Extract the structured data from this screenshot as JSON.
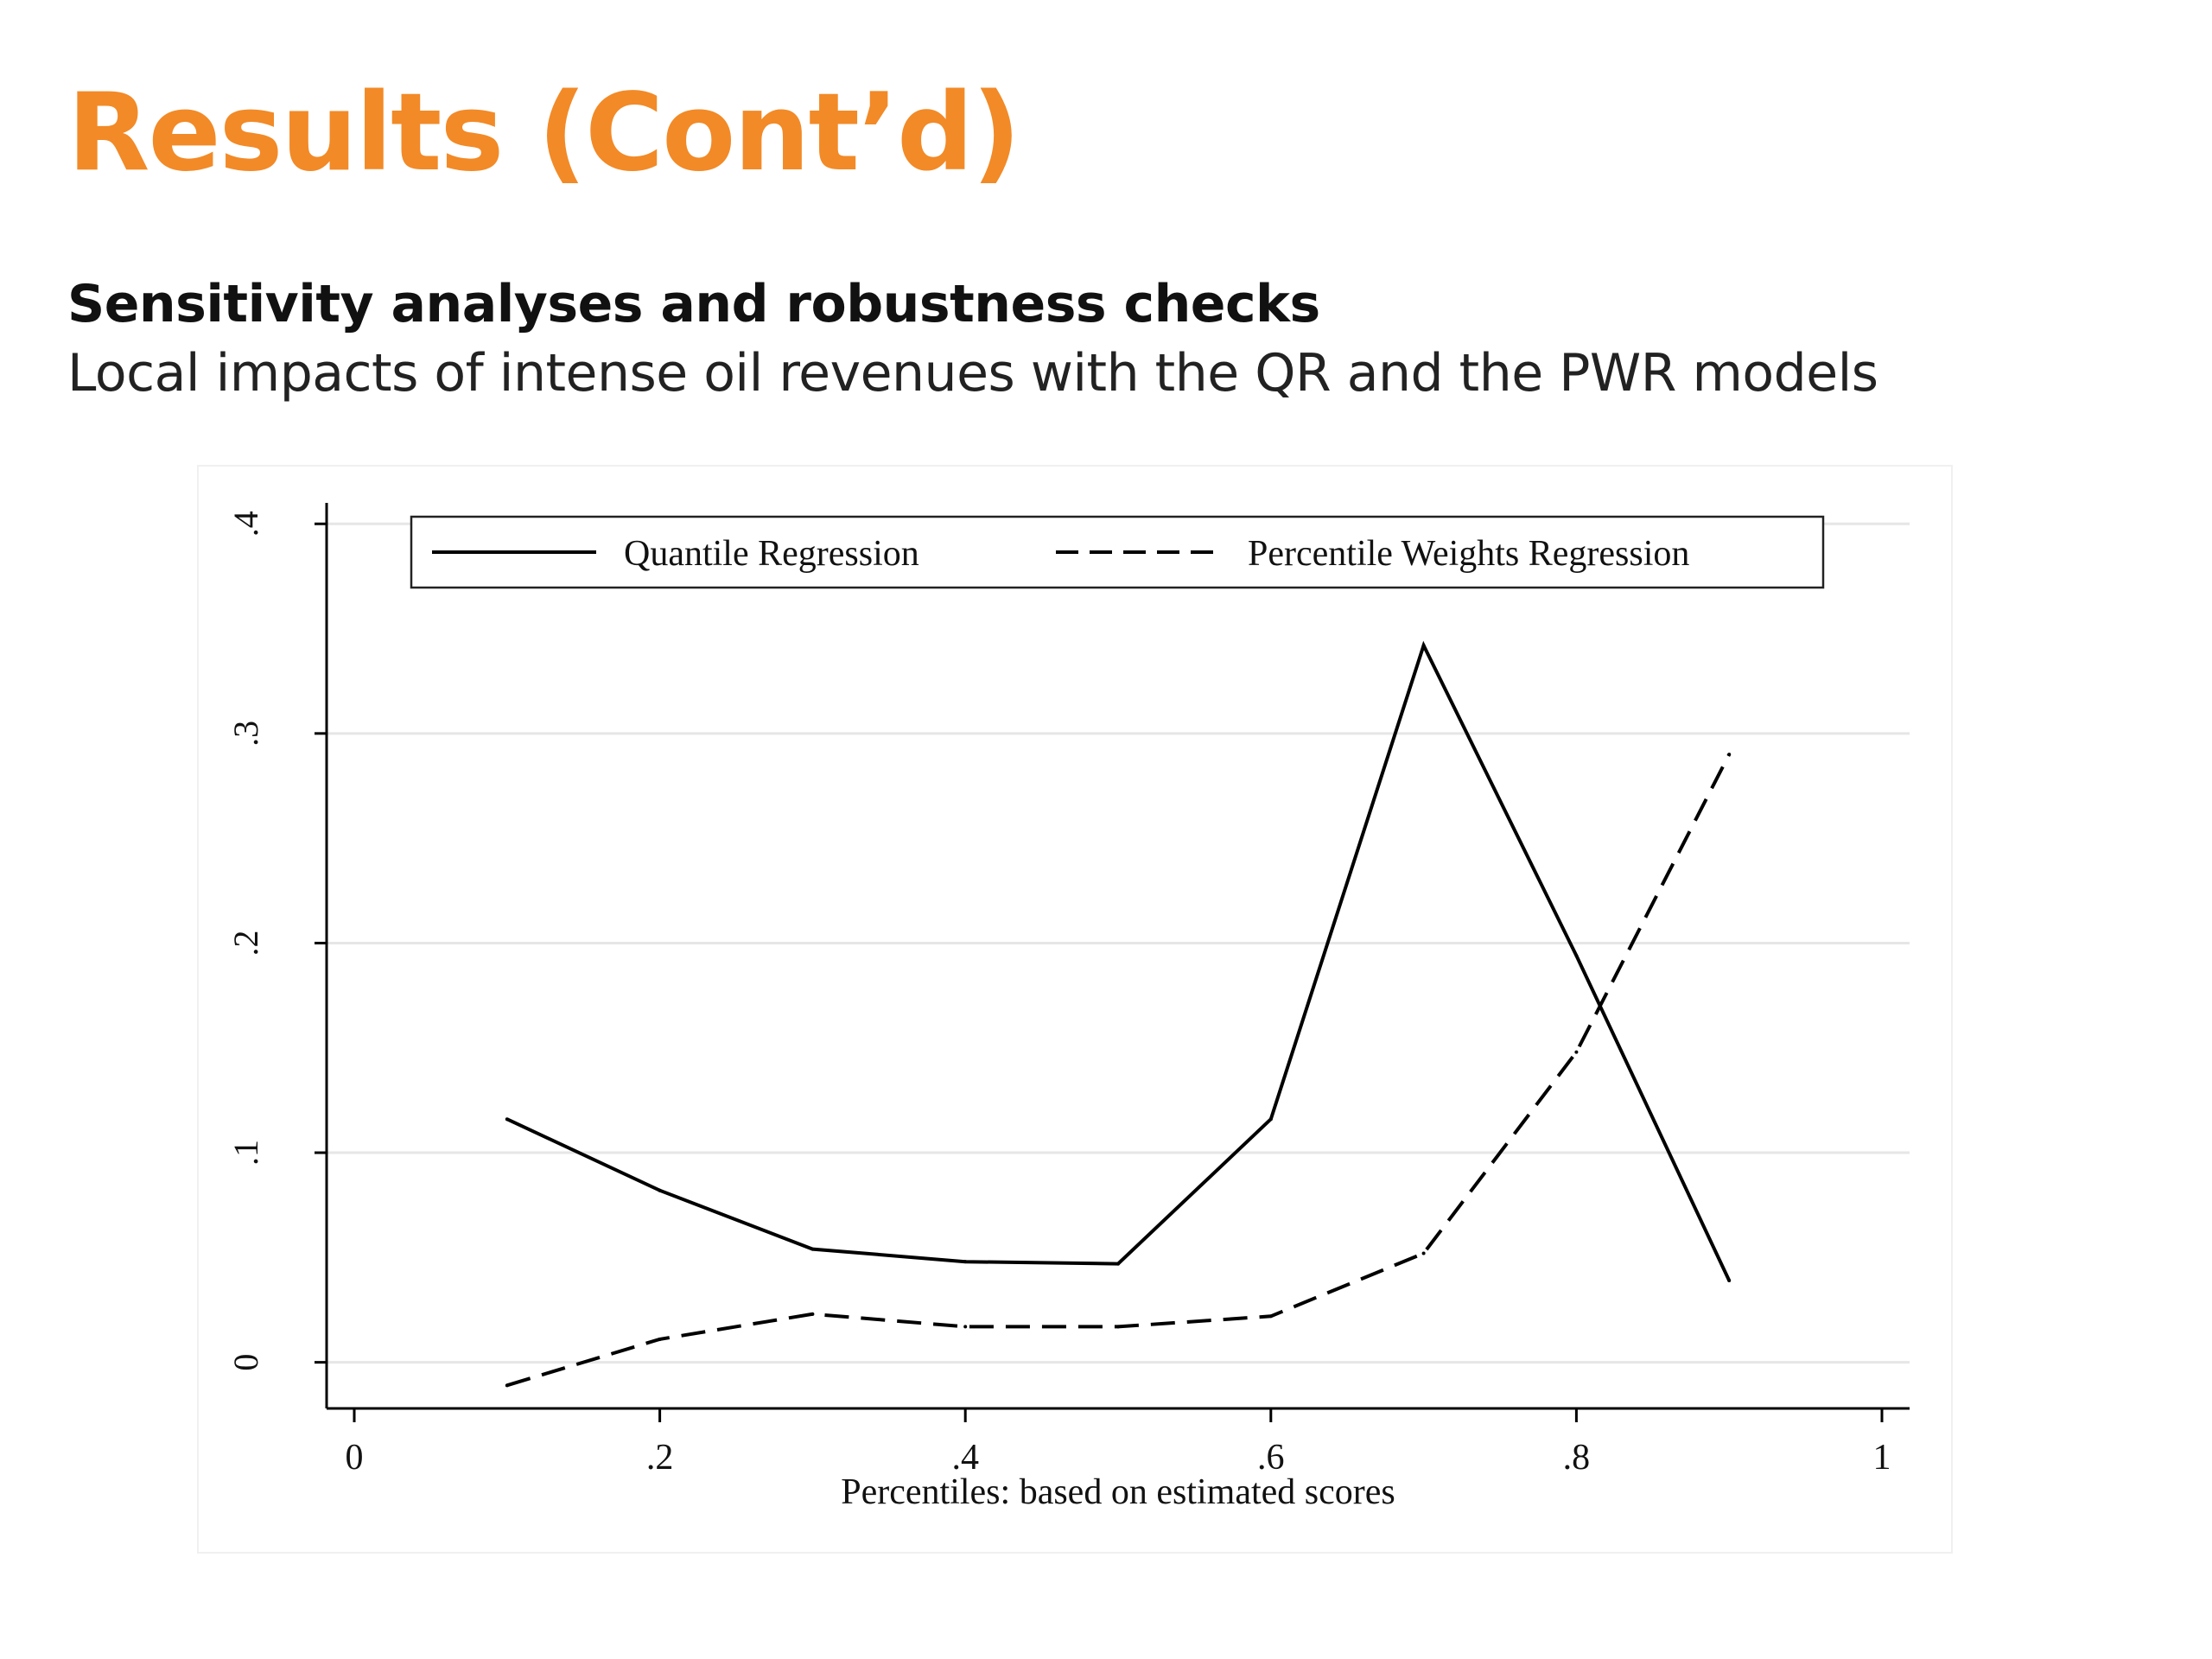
{
  "slide": {
    "title": "Results (Cont’d)",
    "subtitle": "Sensitivity analyses and robustness checks",
    "description": "Local impacts of intense oil revenues with the QR and the PWR models"
  },
  "chart_data": {
    "type": "line",
    "xlabel": "Percentiles: based on estimated scores",
    "ylabel": "",
    "xlim": [
      0,
      1
    ],
    "ylim": [
      -0.022,
      0.41
    ],
    "x_ticks": [
      {
        "value": 0,
        "label": "0"
      },
      {
        "value": 0.2,
        "label": ".2"
      },
      {
        "value": 0.4,
        "label": ".4"
      },
      {
        "value": 0.6,
        "label": ".6"
      },
      {
        "value": 0.8,
        "label": ".8"
      },
      {
        "value": 1,
        "label": "1"
      }
    ],
    "y_ticks": [
      {
        "value": 0,
        "label": "0"
      },
      {
        "value": 0.1,
        "label": ".1"
      },
      {
        "value": 0.2,
        "label": ".2"
      },
      {
        "value": 0.3,
        "label": ".3"
      },
      {
        "value": 0.4,
        "label": ".4"
      }
    ],
    "grid": "horizontal",
    "legend": "top",
    "series": [
      {
        "name": "Quantile Regression",
        "style": "solid",
        "color": "#000000",
        "x": [
          0.1,
          0.2,
          0.3,
          0.4,
          0.5,
          0.6,
          0.7,
          0.8,
          0.9
        ],
        "y": [
          0.116,
          0.082,
          0.054,
          0.048,
          0.047,
          0.116,
          0.342,
          0.194,
          0.039
        ]
      },
      {
        "name": "Percentile Weights Regression",
        "style": "dashed",
        "color": "#000000",
        "x": [
          0.1,
          0.2,
          0.3,
          0.4,
          0.5,
          0.6,
          0.7,
          0.8,
          0.9
        ],
        "y": [
          -0.011,
          0.011,
          0.023,
          0.017,
          0.017,
          0.022,
          0.052,
          0.148,
          0.29
        ]
      }
    ]
  }
}
